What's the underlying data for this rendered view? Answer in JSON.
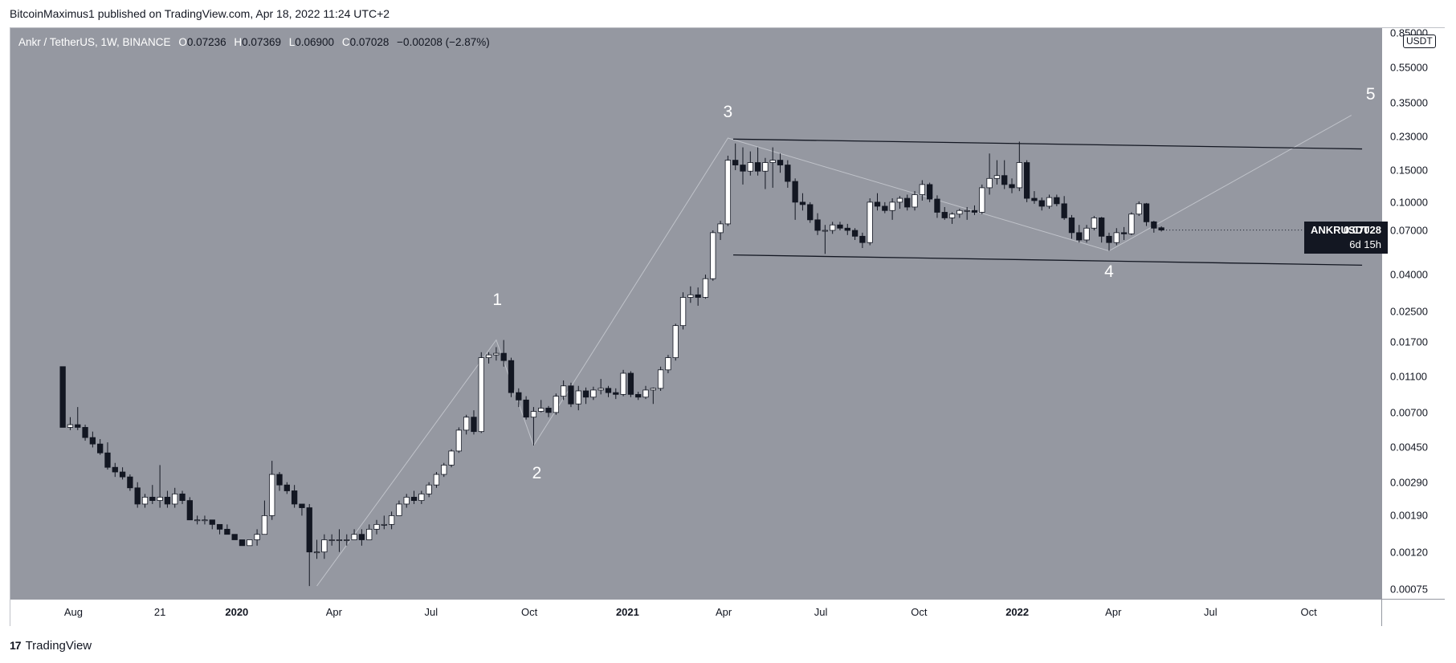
{
  "header": {
    "publisher_text": "BitcoinMaximus1 published on TradingView.com, Apr 18, 2022 11:24 UTC+2"
  },
  "legend": {
    "symbol": "Ankr / TetherUS, 1W, BINANCE",
    "open_key": "O",
    "open": "0.07236",
    "high_key": "H",
    "high": "0.07369",
    "low_key": "L",
    "low": "0.06900",
    "close_key": "C",
    "close": "0.07028",
    "change": "−0.00208 (−2.87%)"
  },
  "price_label": {
    "symbol": "ANKRUSDT",
    "value": "0.07028",
    "countdown": "6d 15h"
  },
  "currency_badge": "USDT",
  "footer": {
    "brand": "TradingView",
    "logo_text": "17"
  },
  "colors": {
    "background": "#9598a1",
    "up": "#ffffff",
    "down": "#131722",
    "line": "#131722",
    "wave_line": "#c0c3ca"
  },
  "icons": {
    "footer_logo": "tradingview-logo-icon"
  },
  "chart_data": {
    "type": "candlestick",
    "interval": "1W",
    "y_scale": "log",
    "ylim": [
      0.00075,
      0.85
    ],
    "y_ticks": [
      "0.85000",
      "0.55000",
      "0.35000",
      "0.23000",
      "0.15000",
      "0.10000",
      "0.07000",
      "0.04000",
      "0.02500",
      "0.01700",
      "0.01100",
      "0.00700",
      "0.00450",
      "0.00290",
      "0.00190",
      "0.00120",
      "0.00075"
    ],
    "x_ticks": [
      {
        "label": "Aug",
        "date": "2019-08-01",
        "year": false
      },
      {
        "label": "21",
        "date": "2019-10-21",
        "year": false
      },
      {
        "label": "2020",
        "date": "2020-01-01",
        "year": true
      },
      {
        "label": "Apr",
        "date": "2020-04-01",
        "year": false
      },
      {
        "label": "Jul",
        "date": "2020-07-01",
        "year": false
      },
      {
        "label": "Oct",
        "date": "2020-10-01",
        "year": false
      },
      {
        "label": "2021",
        "date": "2021-01-01",
        "year": true
      },
      {
        "label": "Apr",
        "date": "2021-04-01",
        "year": false
      },
      {
        "label": "Jul",
        "date": "2021-07-01",
        "year": false
      },
      {
        "label": "Oct",
        "date": "2021-10-01",
        "year": false
      },
      {
        "label": "2022",
        "date": "2022-01-01",
        "year": true
      },
      {
        "label": "Apr",
        "date": "2022-04-01",
        "year": false
      },
      {
        "label": "Jul",
        "date": "2022-07-01",
        "year": false
      },
      {
        "label": "Oct",
        "date": "2022-10-01",
        "year": false
      }
    ],
    "xlim": [
      "2019-06-03",
      "2022-12-08"
    ],
    "candles": [
      [
        "2019-07-22",
        0.0125,
        0.0125,
        0.0058,
        0.0058
      ],
      [
        "2019-07-29",
        0.0058,
        0.0066,
        0.0056,
        0.006
      ],
      [
        "2019-08-05",
        0.006,
        0.0075,
        0.0056,
        0.0058
      ],
      [
        "2019-08-12",
        0.0058,
        0.006,
        0.0049,
        0.0051
      ],
      [
        "2019-08-19",
        0.0051,
        0.0055,
        0.0045,
        0.0047
      ],
      [
        "2019-08-26",
        0.0047,
        0.005,
        0.0041,
        0.0042
      ],
      [
        "2019-09-02",
        0.0042,
        0.0048,
        0.0034,
        0.0035
      ],
      [
        "2019-09-09",
        0.0035,
        0.0037,
        0.0031,
        0.0033
      ],
      [
        "2019-09-16",
        0.0033,
        0.0035,
        0.003,
        0.0031
      ],
      [
        "2019-09-23",
        0.0031,
        0.0032,
        0.0026,
        0.0027
      ],
      [
        "2019-09-30",
        0.0027,
        0.0029,
        0.0021,
        0.0022
      ],
      [
        "2019-10-07",
        0.0022,
        0.0025,
        0.0021,
        0.0024
      ],
      [
        "2019-10-14",
        0.0024,
        0.0028,
        0.0022,
        0.0023
      ],
      [
        "2019-10-21",
        0.0023,
        0.0036,
        0.0021,
        0.0024
      ],
      [
        "2019-10-28",
        0.0024,
        0.0026,
        0.0021,
        0.0022
      ],
      [
        "2019-11-04",
        0.0022,
        0.0027,
        0.0021,
        0.0025
      ],
      [
        "2019-11-11",
        0.0025,
        0.0026,
        0.0022,
        0.0023
      ],
      [
        "2019-11-18",
        0.0023,
        0.0024,
        0.0018,
        0.0018
      ],
      [
        "2019-11-25",
        0.0018,
        0.0019,
        0.0017,
        0.0018
      ],
      [
        "2019-12-02",
        0.0018,
        0.0019,
        0.0017,
        0.0018
      ],
      [
        "2019-12-09",
        0.0018,
        0.0018,
        0.0016,
        0.0017
      ],
      [
        "2019-12-16",
        0.0017,
        0.0017,
        0.0015,
        0.0016
      ],
      [
        "2019-12-23",
        0.0016,
        0.0017,
        0.0015,
        0.0015
      ],
      [
        "2019-12-30",
        0.0015,
        0.0015,
        0.0014,
        0.0014
      ],
      [
        "2020-01-06",
        0.0014,
        0.0014,
        0.0013,
        0.0013
      ],
      [
        "2020-01-13",
        0.0013,
        0.0014,
        0.0013,
        0.0014
      ],
      [
        "2020-01-20",
        0.0014,
        0.0016,
        0.0013,
        0.0015
      ],
      [
        "2020-01-27",
        0.0015,
        0.0023,
        0.0015,
        0.0019
      ],
      [
        "2020-02-03",
        0.0019,
        0.0038,
        0.0018,
        0.0032
      ],
      [
        "2020-02-10",
        0.0032,
        0.0033,
        0.0026,
        0.0028
      ],
      [
        "2020-02-17",
        0.0028,
        0.0029,
        0.0025,
        0.0026
      ],
      [
        "2020-02-24",
        0.0026,
        0.0028,
        0.0021,
        0.0022
      ],
      [
        "2020-03-02",
        0.0022,
        0.0022,
        0.0019,
        0.0021
      ],
      [
        "2020-03-09",
        0.0021,
        0.0022,
        0.00078,
        0.0012
      ],
      [
        "2020-03-16",
        0.0012,
        0.0014,
        0.0011,
        0.0012
      ],
      [
        "2020-03-23",
        0.0012,
        0.0015,
        0.0011,
        0.0014
      ],
      [
        "2020-03-30",
        0.0014,
        0.0015,
        0.0013,
        0.0014
      ],
      [
        "2020-04-06",
        0.0014,
        0.0016,
        0.0012,
        0.0014
      ],
      [
        "2020-04-13",
        0.0014,
        0.0015,
        0.0013,
        0.0014
      ],
      [
        "2020-04-20",
        0.0014,
        0.0016,
        0.0014,
        0.0015
      ],
      [
        "2020-04-27",
        0.0015,
        0.0016,
        0.0013,
        0.0014
      ],
      [
        "2020-05-04",
        0.0014,
        0.0017,
        0.0014,
        0.0016
      ],
      [
        "2020-05-11",
        0.0016,
        0.0018,
        0.0015,
        0.0017
      ],
      [
        "2020-05-18",
        0.0017,
        0.0019,
        0.0016,
        0.0017
      ],
      [
        "2020-05-25",
        0.0017,
        0.002,
        0.0016,
        0.0019
      ],
      [
        "2020-06-01",
        0.0019,
        0.0023,
        0.0019,
        0.0022
      ],
      [
        "2020-06-08",
        0.0022,
        0.0025,
        0.0021,
        0.0024
      ],
      [
        "2020-06-15",
        0.0024,
        0.0026,
        0.0022,
        0.0023
      ],
      [
        "2020-06-22",
        0.0023,
        0.0026,
        0.0022,
        0.0025
      ],
      [
        "2020-06-29",
        0.0025,
        0.0029,
        0.0024,
        0.0028
      ],
      [
        "2020-07-06",
        0.0028,
        0.0033,
        0.0027,
        0.0032
      ],
      [
        "2020-07-13",
        0.0032,
        0.0037,
        0.0031,
        0.0036
      ],
      [
        "2020-07-20",
        0.0036,
        0.0044,
        0.0035,
        0.0043
      ],
      [
        "2020-07-27",
        0.0043,
        0.0058,
        0.0042,
        0.0056
      ],
      [
        "2020-08-03",
        0.0056,
        0.0068,
        0.0053,
        0.0066
      ],
      [
        "2020-08-10",
        0.0066,
        0.0072,
        0.0053,
        0.0055
      ],
      [
        "2020-08-17",
        0.0055,
        0.015,
        0.0054,
        0.014
      ],
      [
        "2020-08-24",
        0.014,
        0.015,
        0.013,
        0.0145
      ],
      [
        "2020-08-31",
        0.0145,
        0.016,
        0.0135,
        0.0148
      ],
      [
        "2020-09-07",
        0.0148,
        0.0175,
        0.0125,
        0.0135
      ],
      [
        "2020-09-14",
        0.0135,
        0.014,
        0.0085,
        0.009
      ],
      [
        "2020-09-21",
        0.009,
        0.0095,
        0.0075,
        0.0082
      ],
      [
        "2020-09-28",
        0.0082,
        0.0086,
        0.0064,
        0.0066
      ],
      [
        "2020-10-05",
        0.0066,
        0.0075,
        0.0046,
        0.0071
      ],
      [
        "2020-10-12",
        0.0071,
        0.0082,
        0.007,
        0.0074
      ],
      [
        "2020-10-19",
        0.0074,
        0.0076,
        0.0066,
        0.007
      ],
      [
        "2020-10-26",
        0.007,
        0.0089,
        0.0068,
        0.0086
      ],
      [
        "2020-11-02",
        0.0086,
        0.0105,
        0.0082,
        0.0098
      ],
      [
        "2020-11-09",
        0.0098,
        0.0102,
        0.0075,
        0.0078
      ],
      [
        "2020-11-16",
        0.0078,
        0.0098,
        0.0072,
        0.0092
      ],
      [
        "2020-11-23",
        0.0092,
        0.0096,
        0.0078,
        0.0085
      ],
      [
        "2020-11-30",
        0.0085,
        0.0097,
        0.0082,
        0.0093
      ],
      [
        "2020-12-07",
        0.0093,
        0.0107,
        0.0088,
        0.0095
      ],
      [
        "2020-12-14",
        0.0095,
        0.0098,
        0.0085,
        0.009
      ],
      [
        "2020-12-21",
        0.009,
        0.0095,
        0.0083,
        0.0088
      ],
      [
        "2020-12-28",
        0.0088,
        0.012,
        0.0086,
        0.0115
      ],
      [
        "2021-01-04",
        0.0115,
        0.0118,
        0.0085,
        0.0088
      ],
      [
        "2021-01-11",
        0.0088,
        0.0091,
        0.0082,
        0.0085
      ],
      [
        "2021-01-18",
        0.0085,
        0.0098,
        0.0083,
        0.0093
      ],
      [
        "2021-01-25",
        0.0093,
        0.0096,
        0.0078,
        0.0095
      ],
      [
        "2021-02-01",
        0.0095,
        0.0125,
        0.0092,
        0.012
      ],
      [
        "2021-02-08",
        0.012,
        0.0145,
        0.0115,
        0.014
      ],
      [
        "2021-02-15",
        0.014,
        0.0215,
        0.0135,
        0.021
      ],
      [
        "2021-02-22",
        0.021,
        0.032,
        0.02,
        0.03
      ],
      [
        "2021-03-01",
        0.03,
        0.0345,
        0.028,
        0.031
      ],
      [
        "2021-03-08",
        0.031,
        0.034,
        0.027,
        0.03
      ],
      [
        "2021-03-15",
        0.03,
        0.04,
        0.0295,
        0.038
      ],
      [
        "2021-03-22",
        0.038,
        0.07,
        0.037,
        0.068
      ],
      [
        "2021-03-29",
        0.068,
        0.079,
        0.062,
        0.076
      ],
      [
        "2021-04-05",
        0.076,
        0.18,
        0.074,
        0.17
      ],
      [
        "2021-04-12",
        0.17,
        0.21,
        0.15,
        0.16
      ],
      [
        "2021-04-19",
        0.16,
        0.2,
        0.125,
        0.148
      ],
      [
        "2021-04-26",
        0.148,
        0.19,
        0.14,
        0.165
      ],
      [
        "2021-05-03",
        0.165,
        0.2,
        0.14,
        0.148
      ],
      [
        "2021-05-10",
        0.148,
        0.175,
        0.118,
        0.165
      ],
      [
        "2021-05-17",
        0.165,
        0.2,
        0.12,
        0.17
      ],
      [
        "2021-05-24",
        0.17,
        0.185,
        0.145,
        0.16
      ],
      [
        "2021-05-31",
        0.16,
        0.17,
        0.12,
        0.13
      ],
      [
        "2021-06-07",
        0.13,
        0.135,
        0.08,
        0.1
      ],
      [
        "2021-06-14",
        0.1,
        0.112,
        0.09,
        0.097
      ],
      [
        "2021-06-21",
        0.097,
        0.1,
        0.077,
        0.08
      ],
      [
        "2021-06-28",
        0.08,
        0.087,
        0.066,
        0.07
      ],
      [
        "2021-07-05",
        0.07,
        0.075,
        0.052,
        0.07
      ],
      [
        "2021-07-12",
        0.07,
        0.078,
        0.067,
        0.075
      ],
      [
        "2021-07-19",
        0.075,
        0.078,
        0.07,
        0.072
      ],
      [
        "2021-07-26",
        0.072,
        0.076,
        0.066,
        0.07
      ],
      [
        "2021-08-02",
        0.07,
        0.072,
        0.062,
        0.065
      ],
      [
        "2021-08-09",
        0.065,
        0.068,
        0.056,
        0.06
      ],
      [
        "2021-08-16",
        0.06,
        0.105,
        0.058,
        0.1
      ],
      [
        "2021-08-23",
        0.1,
        0.112,
        0.09,
        0.095
      ],
      [
        "2021-08-30",
        0.095,
        0.1,
        0.087,
        0.09
      ],
      [
        "2021-09-06",
        0.09,
        0.105,
        0.08,
        0.1
      ],
      [
        "2021-09-13",
        0.1,
        0.108,
        0.092,
        0.105
      ],
      [
        "2021-09-20",
        0.105,
        0.11,
        0.09,
        0.094
      ],
      [
        "2021-09-27",
        0.094,
        0.115,
        0.09,
        0.11
      ],
      [
        "2021-10-04",
        0.11,
        0.132,
        0.102,
        0.125
      ],
      [
        "2021-10-11",
        0.125,
        0.128,
        0.1,
        0.104
      ],
      [
        "2021-10-18",
        0.104,
        0.109,
        0.082,
        0.088
      ],
      [
        "2021-10-25",
        0.088,
        0.094,
        0.08,
        0.082
      ],
      [
        "2021-11-01",
        0.082,
        0.088,
        0.076,
        0.086
      ],
      [
        "2021-11-08",
        0.086,
        0.092,
        0.082,
        0.09
      ],
      [
        "2021-11-15",
        0.09,
        0.094,
        0.08,
        0.09
      ],
      [
        "2021-11-22",
        0.09,
        0.096,
        0.085,
        0.088
      ],
      [
        "2021-11-29",
        0.088,
        0.125,
        0.086,
        0.12
      ],
      [
        "2021-12-06",
        0.12,
        0.185,
        0.11,
        0.135
      ],
      [
        "2021-12-13",
        0.135,
        0.17,
        0.125,
        0.14
      ],
      [
        "2021-12-20",
        0.14,
        0.17,
        0.118,
        0.125
      ],
      [
        "2021-12-27",
        0.125,
        0.135,
        0.112,
        0.12
      ],
      [
        "2022-01-03",
        0.12,
        0.215,
        0.115,
        0.165
      ],
      [
        "2022-01-10",
        0.165,
        0.17,
        0.1,
        0.105
      ],
      [
        "2022-01-17",
        0.105,
        0.115,
        0.098,
        0.102
      ],
      [
        "2022-01-24",
        0.102,
        0.106,
        0.09,
        0.095
      ],
      [
        "2022-01-31",
        0.095,
        0.11,
        0.092,
        0.106
      ],
      [
        "2022-02-07",
        0.106,
        0.11,
        0.095,
        0.098
      ],
      [
        "2022-02-14",
        0.098,
        0.108,
        0.08,
        0.082
      ],
      [
        "2022-02-21",
        0.082,
        0.085,
        0.063,
        0.068
      ],
      [
        "2022-02-28",
        0.068,
        0.075,
        0.06,
        0.062
      ],
      [
        "2022-03-07",
        0.062,
        0.075,
        0.06,
        0.072
      ],
      [
        "2022-03-14",
        0.072,
        0.084,
        0.07,
        0.082
      ],
      [
        "2022-03-21",
        0.082,
        0.083,
        0.06,
        0.065
      ],
      [
        "2022-03-28",
        0.065,
        0.068,
        0.054,
        0.06
      ],
      [
        "2022-04-04",
        0.06,
        0.072,
        0.058,
        0.068
      ],
      [
        "2022-04-11",
        0.068,
        0.073,
        0.062,
        0.067
      ],
      [
        "2022-04-18",
        0.067,
        0.088,
        0.066,
        0.086
      ],
      [
        "2022-04-25",
        0.086,
        0.101,
        0.084,
        0.098
      ],
      [
        "2022-05-02",
        0.098,
        0.099,
        0.074,
        0.078
      ],
      [
        "2022-05-09",
        0.078,
        0.079,
        0.068,
        0.072
      ],
      [
        "2022-05-16",
        0.07236,
        0.07369,
        0.069,
        0.07028
      ]
    ],
    "channel_lines": [
      {
        "points": [
          [
            "2021-04-10",
            0.222
          ],
          [
            "2022-11-20",
            0.196
          ]
        ]
      },
      {
        "points": [
          [
            "2021-04-10",
            0.0513
          ],
          [
            "2022-11-20",
            0.0451
          ]
        ]
      }
    ],
    "wave_path": [
      [
        "2020-03-16",
        0.00078
      ],
      [
        "2020-08-31",
        0.0175
      ],
      [
        "2020-10-05",
        0.0046
      ],
      [
        "2021-04-05",
        0.225
      ],
      [
        "2022-03-28",
        0.054
      ],
      [
        "2022-11-10",
        0.3
      ]
    ],
    "wave_labels": [
      {
        "text": "1",
        "date": "2020-09-01",
        "price": 0.029
      },
      {
        "text": "2",
        "date": "2020-10-08",
        "price": 0.00325
      },
      {
        "text": "3",
        "date": "2021-04-05",
        "price": 0.31
      },
      {
        "text": "4",
        "date": "2022-03-28",
        "price": 0.0415
      },
      {
        "text": "5",
        "date": "2022-11-28",
        "price": 0.39
      }
    ]
  }
}
